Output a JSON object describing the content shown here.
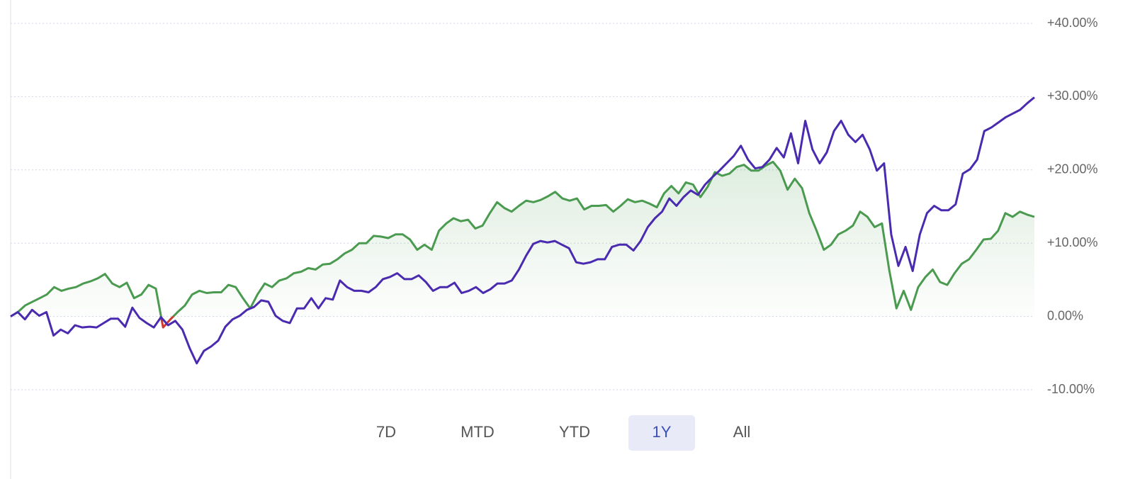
{
  "chart_data": {
    "type": "line",
    "ylim": [
      -10,
      40
    ],
    "yticks": [
      {
        "value": 40,
        "label": "+40.00%"
      },
      {
        "value": 30,
        "label": "+30.00%"
      },
      {
        "value": 20,
        "label": "+20.00%"
      },
      {
        "value": 10,
        "label": "+10.00%"
      },
      {
        "value": 0,
        "label": "0.00%"
      },
      {
        "value": -10,
        "label": "-10.00%"
      }
    ],
    "grid": true,
    "series": [
      {
        "color": "#4a9a50",
        "negative_color": "#d0392f",
        "area": true,
        "values": [
          0,
          0.6,
          1.5,
          2.0,
          2.5,
          3.0,
          4.0,
          3.5,
          3.8,
          4.0,
          4.5,
          4.8,
          5.2,
          5.8,
          4.5,
          4.0,
          4.6,
          2.5,
          3.0,
          4.3,
          3.8,
          -1.5,
          -0.4,
          0.6,
          1.5,
          3.0,
          3.5,
          3.2,
          3.3,
          3.3,
          4.3,
          4.0,
          2.5,
          1.1,
          3.0,
          4.5,
          4.0,
          4.9,
          5.2,
          5.9,
          6.1,
          6.6,
          6.4,
          7.1,
          7.2,
          7.8,
          8.6,
          9.1,
          10.0,
          10.0,
          11.0,
          10.9,
          10.7,
          11.2,
          11.2,
          10.5,
          9.1,
          9.8,
          9.1,
          11.7,
          12.7,
          13.4,
          13.0,
          13.2,
          12.0,
          12.4,
          14.1,
          15.6,
          14.8,
          14.3,
          15.1,
          15.8,
          15.6,
          15.9,
          16.4,
          17.0,
          16.1,
          15.8,
          16.1,
          14.6,
          15.1,
          15.1,
          15.2,
          14.3,
          15.1,
          16.0,
          15.6,
          15.8,
          15.4,
          14.9,
          16.8,
          17.8,
          16.8,
          18.3,
          18.0,
          16.3,
          17.7,
          19.7,
          19.2,
          19.5,
          20.4,
          20.7,
          19.9,
          19.9,
          20.6,
          21.1,
          19.9,
          17.3,
          18.8,
          17.5,
          14.1,
          11.7,
          9.1,
          9.8,
          11.2,
          11.7,
          12.4,
          14.3,
          13.6,
          12.2,
          12.7,
          6.4,
          1.1,
          3.5,
          0.9,
          4.0,
          5.4,
          6.4,
          4.7,
          4.3,
          5.9,
          7.2,
          7.8,
          9.1,
          10.5,
          10.6,
          11.7,
          14.1,
          13.6,
          14.3,
          13.9,
          13.6
        ]
      },
      {
        "color": "#4a2bb0",
        "values": [
          0,
          0.6,
          -0.4,
          0.9,
          0.1,
          0.6,
          -2.6,
          -1.8,
          -2.3,
          -1.2,
          -1.5,
          -1.4,
          -1.5,
          -0.9,
          -0.3,
          -0.3,
          -1.4,
          1.2,
          -0.2,
          -0.9,
          -1.5,
          -0.1,
          -1.2,
          -0.6,
          -1.8,
          -4.3,
          -6.4,
          -4.7,
          -4.1,
          -3.3,
          -1.4,
          -0.4,
          0.1,
          0.9,
          1.3,
          2.2,
          2.0,
          0.1,
          -0.6,
          -0.9,
          1.1,
          1.1,
          2.5,
          1.1,
          2.5,
          2.3,
          4.9,
          4.0,
          3.5,
          3.5,
          3.3,
          4.0,
          5.1,
          5.4,
          5.9,
          5.1,
          5.1,
          5.6,
          4.7,
          3.5,
          4.0,
          4.0,
          4.6,
          3.2,
          3.5,
          4.0,
          3.2,
          3.7,
          4.5,
          4.5,
          4.9,
          6.4,
          8.3,
          9.9,
          10.3,
          10.1,
          10.3,
          9.8,
          9.3,
          7.4,
          7.2,
          7.4,
          7.8,
          7.8,
          9.5,
          9.8,
          9.8,
          9.0,
          10.3,
          12.2,
          13.4,
          14.3,
          16.1,
          15.1,
          16.3,
          17.2,
          16.6,
          18.0,
          19.0,
          19.9,
          20.9,
          21.9,
          23.3,
          21.4,
          20.2,
          20.4,
          21.4,
          23.0,
          21.7,
          25.0,
          20.9,
          26.7,
          22.8,
          20.9,
          22.4,
          25.3,
          26.7,
          24.8,
          23.8,
          24.8,
          22.8,
          19.9,
          20.9,
          11.2,
          6.9,
          9.5,
          6.2,
          11.2,
          14.1,
          15.1,
          14.5,
          14.5,
          15.3,
          19.5,
          20.1,
          21.4,
          25.3,
          25.8,
          26.5,
          27.2,
          27.7,
          28.2,
          29.1,
          29.9
        ]
      }
    ]
  },
  "range_buttons": [
    "7D",
    "MTD",
    "YTD",
    "1Y",
    "All"
  ],
  "selected_range": 3
}
